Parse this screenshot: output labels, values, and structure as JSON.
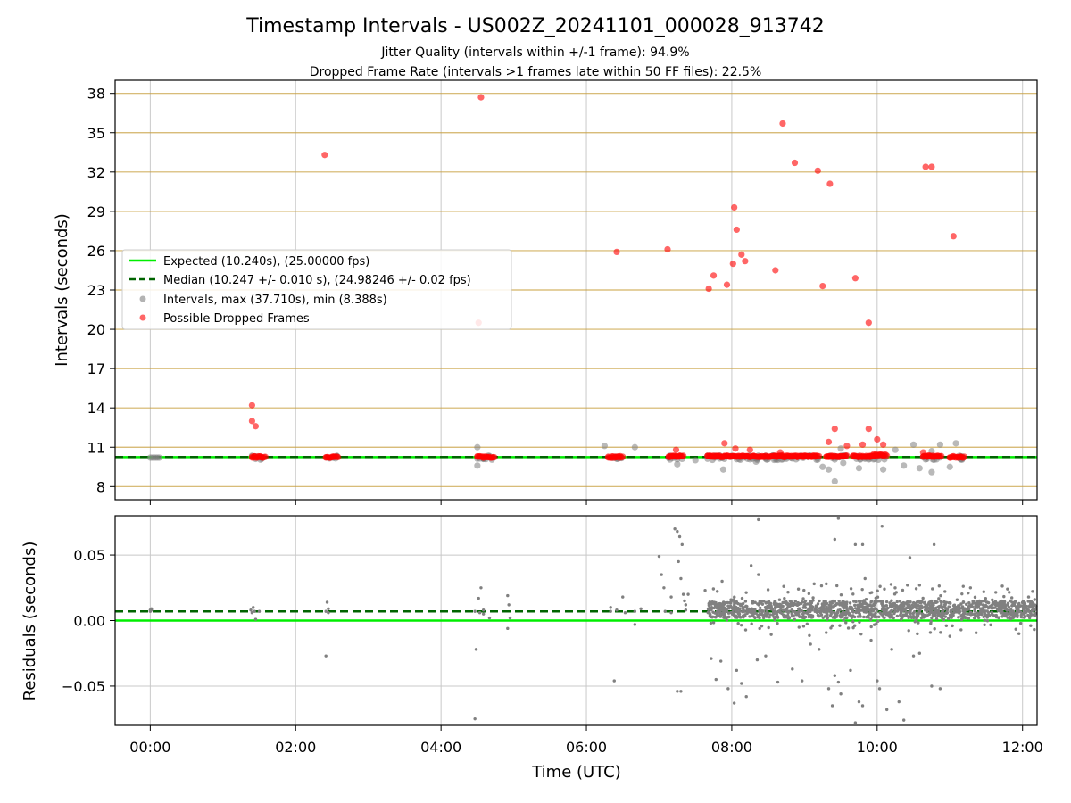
{
  "figure": {
    "title": "Timestamp Intervals - US002Z_20241101_000028_913742",
    "subtitle_1": "Jitter Quality (intervals within +/-1 frame): 94.9%",
    "subtitle_2": "Dropped Frame Rate (intervals >1 frames late within 50 FF files): 22.5%"
  },
  "colors": {
    "expected": "#00ee00",
    "median": "#006400",
    "intervals": "#808080",
    "dropped": "#ff0000",
    "hgrid": "#c8a040",
    "vgrid": "#c8c8c8"
  },
  "chart_data": [
    {
      "type": "scatter",
      "xlabel": "Time (UTC)",
      "ylabel": "Intervals (seconds)",
      "xlim": [
        "-00:29",
        "12:12"
      ],
      "ylim": [
        7,
        39
      ],
      "x_ticks": [
        "00:00",
        "02:00",
        "04:00",
        "06:00",
        "08:00",
        "10:00",
        "12:00"
      ],
      "y_ticks": [
        8,
        11,
        14,
        17,
        20,
        23,
        26,
        29,
        32,
        35,
        38
      ],
      "grid": true,
      "legend_position": "center-left",
      "legend": [
        "Expected (10.240s), (25.00000 fps)",
        "Median (10.247 +/- 0.010 s), (24.98246 +/- 0.02 fps)",
        "Intervals, max (37.710s), min (8.388s)",
        "Possible Dropped Frames"
      ],
      "reference_lines": {
        "expected": 10.24,
        "median": 10.247
      },
      "series": [
        {
          "name": "Possible Dropped Frames",
          "points": [
            [
              "01:24",
              14.2
            ],
            [
              "01:24",
              13.0
            ],
            [
              "01:27",
              12.6
            ],
            [
              "02:24",
              33.3
            ],
            [
              "04:31",
              20.5
            ],
            [
              "04:33",
              37.7
            ],
            [
              "06:25",
              25.9
            ],
            [
              "07:07",
              26.1
            ],
            [
              "07:41",
              23.1
            ],
            [
              "07:45",
              24.1
            ],
            [
              "07:56",
              23.4
            ],
            [
              "08:01",
              25.0
            ],
            [
              "08:02",
              29.3
            ],
            [
              "08:04",
              27.6
            ],
            [
              "08:08",
              25.7
            ],
            [
              "08:11",
              25.2
            ],
            [
              "08:36",
              24.5
            ],
            [
              "08:42",
              35.7
            ],
            [
              "08:52",
              32.7
            ],
            [
              "09:11",
              32.1
            ],
            [
              "09:15",
              23.3
            ],
            [
              "09:21",
              31.1
            ],
            [
              "09:42",
              23.9
            ],
            [
              "09:53",
              20.5
            ],
            [
              "10:40",
              32.4
            ],
            [
              "10:45",
              32.4
            ],
            [
              "11:03",
              27.1
            ],
            [
              "09:25",
              12.4
            ],
            [
              "09:53",
              12.4
            ],
            [
              "09:20",
              11.4
            ],
            [
              "09:35",
              11.1
            ],
            [
              "10:00",
              11.6
            ],
            [
              "10:05",
              11.2
            ],
            [
              "08:03",
              10.9
            ],
            [
              "07:14",
              10.8
            ],
            [
              "08:15",
              10.8
            ],
            [
              "07:54",
              11.3
            ],
            [
              "09:48",
              11.2
            ],
            [
              "10:38",
              10.6
            ],
            [
              "08:40",
              10.6
            ]
          ],
          "dense_bands": [
            [
              "01:24",
              "01:35",
              10.25
            ],
            [
              "02:25",
              "02:35",
              10.25
            ],
            [
              "04:30",
              "04:44",
              10.25
            ],
            [
              "06:18",
              "06:30",
              10.25
            ],
            [
              "07:08",
              "07:20",
              10.3
            ],
            [
              "07:40",
              "08:35",
              10.3
            ],
            [
              "08:35",
              "09:12",
              10.3
            ],
            [
              "09:18",
              "09:35",
              10.3
            ],
            [
              "09:40",
              "09:57",
              10.3
            ],
            [
              "09:57",
              "10:08",
              10.4
            ],
            [
              "10:38",
              "10:53",
              10.3
            ],
            [
              "11:00",
              "11:12",
              10.25
            ]
          ]
        },
        {
          "name": "Intervals",
          "points": [
            [
              "04:30",
              11.0
            ],
            [
              "04:30",
              9.6
            ],
            [
              "06:15",
              11.1
            ],
            [
              "06:40",
              11.0
            ],
            [
              "07:15",
              9.7
            ],
            [
              "07:30",
              10.0
            ],
            [
              "07:53",
              9.3
            ],
            [
              "08:20",
              9.9
            ],
            [
              "09:15",
              9.5
            ],
            [
              "09:20",
              9.3
            ],
            [
              "09:25",
              8.4
            ],
            [
              "09:32",
              9.8
            ],
            [
              "09:45",
              9.4
            ],
            [
              "10:05",
              9.3
            ],
            [
              "10:15",
              10.8
            ],
            [
              "10:22",
              9.6
            ],
            [
              "10:30",
              11.2
            ],
            [
              "10:35",
              9.4
            ],
            [
              "10:45",
              9.1
            ],
            [
              "10:52",
              11.2
            ],
            [
              "11:00",
              9.5
            ],
            [
              "11:05",
              11.3
            ],
            [
              "10:45",
              10.7
            ],
            [
              "09:30",
              10.9
            ]
          ]
        }
      ]
    },
    {
      "type": "scatter",
      "xlabel": "Time (UTC)",
      "ylabel": "Residuals (seconds)",
      "xlim": [
        "-00:29",
        "12:12"
      ],
      "ylim": [
        -0.08,
        0.08
      ],
      "y_ticks": [
        "0.05",
        "0.00",
        "−0.05"
      ],
      "grid": true,
      "reference_lines": {
        "expected": 0.0,
        "median": 0.007
      },
      "series": [
        {
          "name": "Residuals",
          "points": [
            [
              "00:00",
              0.008
            ],
            [
              "00:01",
              0.009
            ],
            [
              "01:23",
              0.008
            ],
            [
              "01:25",
              0.01
            ],
            [
              "01:27",
              0.001
            ],
            [
              "01:30",
              0.007
            ],
            [
              "02:25",
              -0.027
            ],
            [
              "02:26",
              0.014
            ],
            [
              "02:27",
              0.009
            ],
            [
              "04:28",
              -0.075
            ],
            [
              "04:29",
              -0.022
            ],
            [
              "04:31",
              0.017
            ],
            [
              "04:33",
              0.025
            ],
            [
              "04:35",
              0.005
            ],
            [
              "04:40",
              0.002
            ],
            [
              "04:55",
              0.019
            ],
            [
              "04:55",
              -0.006
            ],
            [
              "04:56",
              0.012
            ],
            [
              "04:57",
              0.002
            ],
            [
              "06:20",
              0.01
            ],
            [
              "06:23",
              -0.046
            ],
            [
              "06:30",
              0.018
            ],
            [
              "06:40",
              -0.003
            ],
            [
              "06:45",
              0.009
            ],
            [
              "07:00",
              0.049
            ],
            [
              "07:02",
              0.035
            ],
            [
              "07:04",
              0.025
            ],
            [
              "07:10",
              0.018
            ],
            [
              "07:13",
              0.07
            ],
            [
              "07:15",
              0.068
            ],
            [
              "07:17",
              0.064
            ],
            [
              "07:19",
              0.058
            ],
            [
              "07:16",
              0.045
            ],
            [
              "07:18",
              0.032
            ],
            [
              "07:20",
              0.02
            ],
            [
              "07:21",
              0.015
            ],
            [
              "07:22",
              0.012
            ],
            [
              "07:15",
              -0.054
            ],
            [
              "07:18",
              -0.054
            ],
            [
              "07:22",
              0.008
            ],
            [
              "07:24",
              0.02
            ],
            [
              "07:38",
              0.023
            ],
            [
              "07:43",
              -0.029
            ],
            [
              "07:47",
              -0.045
            ],
            [
              "07:51",
              -0.031
            ],
            [
              "07:52",
              0.03
            ],
            [
              "07:57",
              -0.052
            ],
            [
              "08:02",
              -0.063
            ],
            [
              "08:04",
              -0.038
            ],
            [
              "08:08",
              -0.048
            ],
            [
              "08:12",
              -0.058
            ],
            [
              "08:16",
              0.042
            ],
            [
              "08:21",
              -0.03
            ],
            [
              "08:22",
              0.035
            ],
            [
              "08:28",
              -0.027
            ],
            [
              "08:38",
              -0.047
            ],
            [
              "08:50",
              -0.037
            ],
            [
              "08:58",
              -0.046
            ],
            [
              "09:05",
              -0.018
            ],
            [
              "09:12",
              -0.022
            ],
            [
              "09:20",
              -0.052
            ],
            [
              "09:23",
              -0.065
            ],
            [
              "09:25",
              -0.042
            ],
            [
              "09:28",
              -0.047
            ],
            [
              "09:30",
              -0.056
            ],
            [
              "09:38",
              -0.038
            ],
            [
              "09:42",
              -0.078
            ],
            [
              "09:45",
              -0.062
            ],
            [
              "09:48",
              -0.065
            ],
            [
              "09:55",
              -0.015
            ],
            [
              "10:00",
              -0.046
            ],
            [
              "10:02",
              -0.052
            ],
            [
              "10:08",
              -0.068
            ],
            [
              "10:12",
              -0.022
            ],
            [
              "10:18",
              -0.062
            ],
            [
              "10:22",
              -0.076
            ],
            [
              "10:30",
              -0.027
            ],
            [
              "10:35",
              -0.025
            ],
            [
              "10:45",
              -0.05
            ],
            [
              "10:52",
              -0.052
            ],
            [
              "11:00",
              -0.012
            ],
            [
              "08:22",
              0.077
            ],
            [
              "09:25",
              0.062
            ],
            [
              "09:28",
              0.078
            ],
            [
              "09:42",
              0.058
            ],
            [
              "09:48",
              0.058
            ],
            [
              "10:04",
              0.072
            ],
            [
              "10:47",
              0.058
            ],
            [
              "10:27",
              0.048
            ],
            [
              "08:55",
              0.024
            ],
            [
              "09:08",
              0.028
            ],
            [
              "09:50",
              0.032
            ],
            [
              "10:06",
              0.024
            ],
            [
              "10:25",
              0.027
            ],
            [
              "10:35",
              0.027
            ],
            [
              "11:17",
              0.025
            ],
            [
              "11:28",
              0.022
            ],
            [
              "12:05",
              0.018
            ],
            [
              "12:10",
              0.016
            ],
            [
              "11:50",
              0.015
            ],
            [
              "09:18",
              0.028
            ]
          ],
          "dense_band": [
            "07:40",
            "12:12",
            0.002,
            0.015
          ]
        }
      ]
    }
  ]
}
